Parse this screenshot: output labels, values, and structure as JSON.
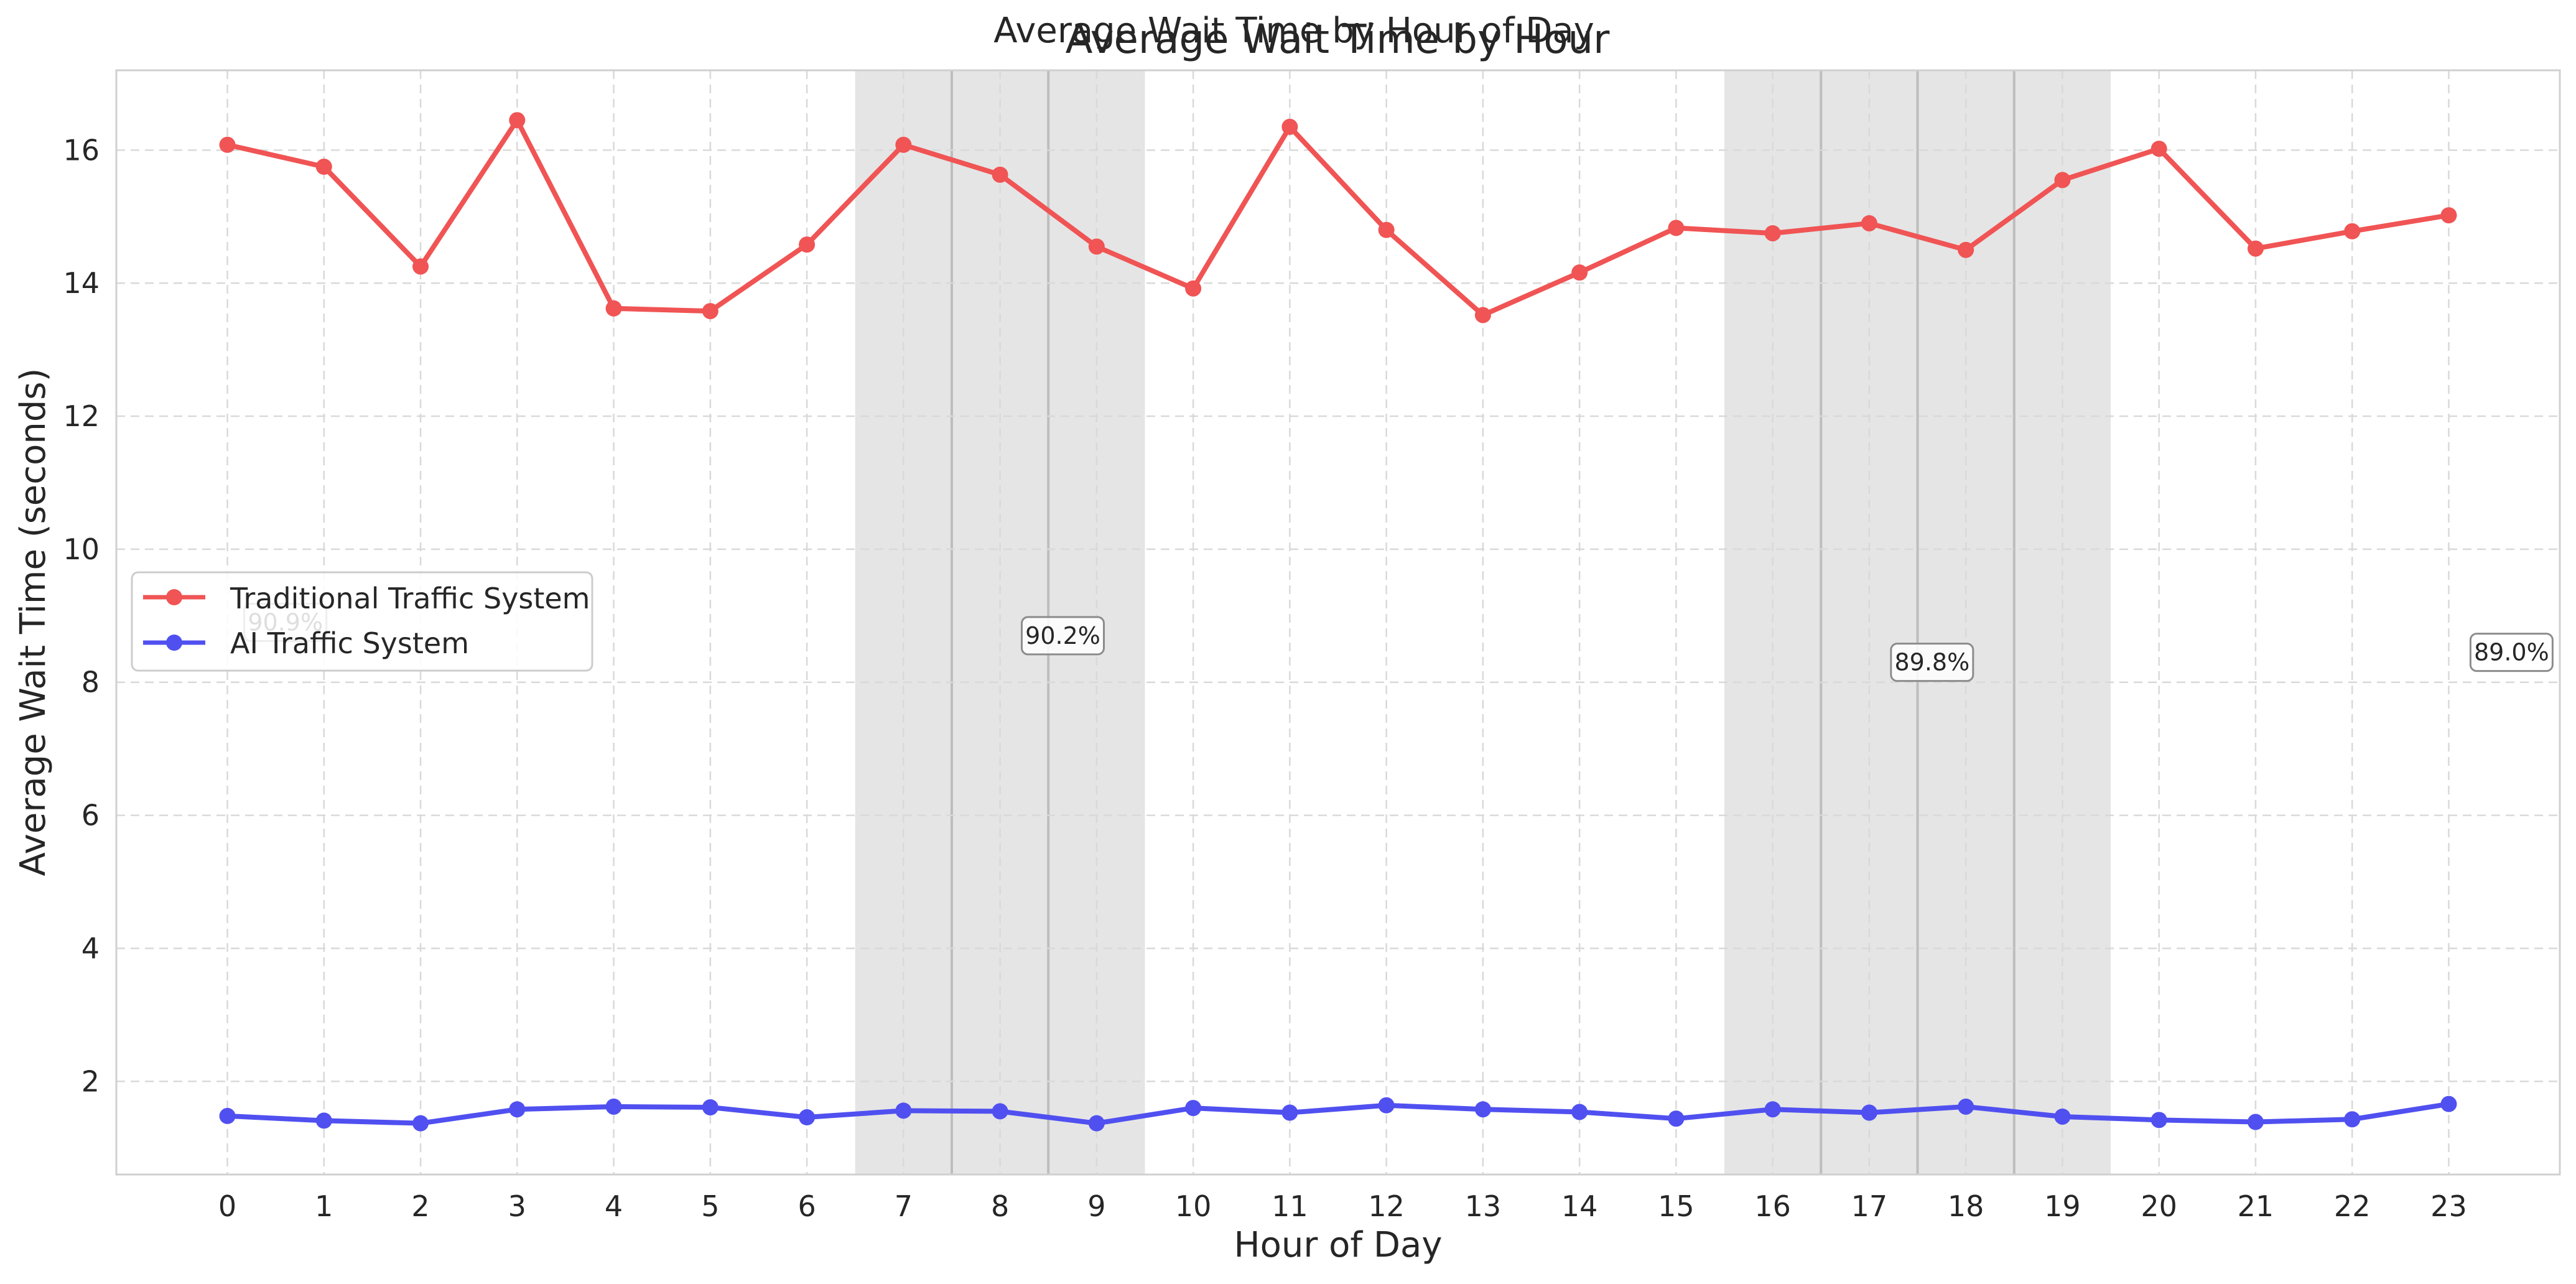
{
  "chart_data": {
    "type": "line",
    "suptitle": "Average Wait Time by Hour of Day",
    "title": "Average Wait Time by Hour",
    "xlabel": "Hour of Day",
    "ylabel": "Average Wait Time (seconds)",
    "ylim": [
      0.6,
      17.2
    ],
    "xlim": [
      -1.15,
      24.15
    ],
    "xticks": [
      "0",
      "1",
      "2",
      "3",
      "4",
      "5",
      "6",
      "7",
      "8",
      "9",
      "10",
      "11",
      "12",
      "13",
      "14",
      "15",
      "16",
      "17",
      "18",
      "19",
      "20",
      "21",
      "22",
      "23"
    ],
    "yticks": [
      "2",
      "4",
      "6",
      "8",
      "10",
      "12",
      "14",
      "16"
    ],
    "grid": true,
    "legend_position": "center-left",
    "x": [
      0,
      1,
      2,
      3,
      4,
      5,
      6,
      7,
      8,
      9,
      10,
      11,
      12,
      13,
      14,
      15,
      16,
      17,
      18,
      19,
      20,
      21,
      22,
      23
    ],
    "series": [
      {
        "name": "Traditional Traffic System",
        "color": "#f05454",
        "values": [
          16.08,
          15.75,
          14.25,
          16.45,
          13.62,
          13.58,
          14.58,
          16.08,
          15.63,
          14.55,
          13.92,
          16.35,
          14.8,
          13.52,
          14.16,
          14.83,
          14.75,
          14.9,
          14.5,
          15.55,
          16.02,
          14.52,
          14.78,
          15.02
        ]
      },
      {
        "name": "AI Traffic System",
        "color": "#5050f0",
        "values": [
          1.48,
          1.41,
          1.37,
          1.58,
          1.62,
          1.61,
          1.46,
          1.56,
          1.55,
          1.37,
          1.6,
          1.53,
          1.64,
          1.58,
          1.54,
          1.44,
          1.58,
          1.53,
          1.62,
          1.47,
          1.42,
          1.39,
          1.43,
          1.66
        ]
      }
    ],
    "shaded_hours": [
      7,
      8,
      9,
      16,
      17,
      18,
      19
    ],
    "annotations": [
      {
        "text": "90.9%",
        "x": 0.6,
        "y": 8.9
      },
      {
        "text": "90.2%",
        "x": 8.65,
        "y": 8.7
      },
      {
        "text": "89.8%",
        "x": 17.65,
        "y": 8.3
      },
      {
        "text": "89.0%",
        "x": 23.65,
        "y": 8.45
      }
    ]
  }
}
